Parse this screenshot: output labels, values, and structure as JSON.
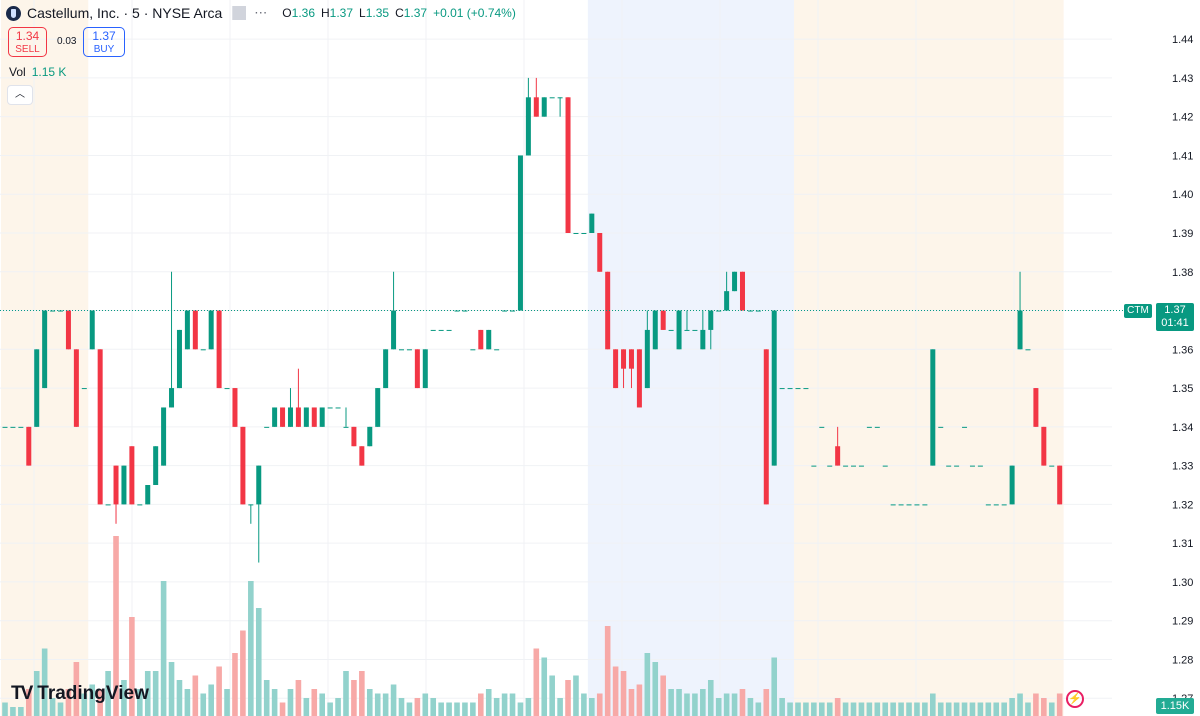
{
  "header": {
    "symbol": "Castellum, Inc. · 5 · NYSE Arca",
    "ohlc": {
      "o_label": "O",
      "o": "1.36",
      "h_label": "H",
      "h": "1.37",
      "l_label": "L",
      "l": "1.35",
      "c_label": "C",
      "c": "1.37",
      "change": "+0.01 (+0.74%)"
    }
  },
  "trade": {
    "sell_price": "1.34",
    "sell_label": "SELL",
    "spread": "0.03",
    "buy_price": "1.37",
    "buy_label": "BUY"
  },
  "volume": {
    "label": "Vol",
    "value": "1.15 K"
  },
  "price_tag": {
    "label": "CTM",
    "price": "1.37",
    "countdown": "01:41"
  },
  "volume_tag": "1.15K",
  "brand": {
    "logo": "TV",
    "name": "TradingView"
  },
  "colors": {
    "up": "#089981",
    "down": "#f23645",
    "up_volume": "#92d2cc",
    "down_volume": "#f7a9a7",
    "premarket": "#fdf5ea",
    "postmarket": "#eef3fd"
  },
  "chart_data": {
    "type": "candlestick",
    "y_axis": {
      "ticks": [
        "1.44",
        "1.43",
        "1.42",
        "1.41",
        "1.40",
        "1.39",
        "1.38",
        "1.37",
        "1.36",
        "1.35",
        "1.34",
        "1.33",
        "1.32",
        "1.31",
        "1.30",
        "1.29",
        "1.28",
        "1.27"
      ],
      "ylim": [
        1.268,
        1.447
      ]
    },
    "current_price": 1.37,
    "sessions": [
      {
        "type": "extended",
        "from": 0,
        "to": 11
      },
      {
        "type": "regular",
        "from": 11,
        "to": 74
      },
      {
        "type": "postmarket",
        "from": 74,
        "to": 100
      },
      {
        "type": "extended",
        "from": 100,
        "to": 134
      }
    ],
    "candles": [
      [
        1.34,
        1.34,
        1.34,
        1.34,
        3
      ],
      [
        1.34,
        1.34,
        1.34,
        1.34,
        2
      ],
      [
        1.34,
        1.34,
        1.34,
        1.34,
        2
      ],
      [
        1.34,
        1.34,
        1.33,
        1.33,
        6
      ],
      [
        1.34,
        1.36,
        1.34,
        1.36,
        10
      ],
      [
        1.35,
        1.37,
        1.35,
        1.37,
        15
      ],
      [
        1.37,
        1.37,
        1.37,
        1.37,
        4
      ],
      [
        1.37,
        1.37,
        1.37,
        1.37,
        3
      ],
      [
        1.37,
        1.37,
        1.36,
        1.36,
        6
      ],
      [
        1.36,
        1.36,
        1.34,
        1.34,
        12
      ],
      [
        1.35,
        1.35,
        1.35,
        1.35,
        5
      ],
      [
        1.36,
        1.37,
        1.36,
        1.37,
        7
      ],
      [
        1.36,
        1.36,
        1.32,
        1.32,
        6
      ],
      [
        1.32,
        1.32,
        1.32,
        1.32,
        10
      ],
      [
        1.33,
        1.33,
        1.315,
        1.32,
        40
      ],
      [
        1.32,
        1.33,
        1.32,
        1.33,
        8
      ],
      [
        1.335,
        1.335,
        1.32,
        1.32,
        22
      ],
      [
        1.32,
        1.32,
        1.32,
        1.32,
        6
      ],
      [
        1.32,
        1.325,
        1.32,
        1.325,
        10
      ],
      [
        1.325,
        1.335,
        1.325,
        1.335,
        10
      ],
      [
        1.33,
        1.345,
        1.33,
        1.345,
        30
      ],
      [
        1.345,
        1.38,
        1.345,
        1.35,
        12
      ],
      [
        1.35,
        1.365,
        1.35,
        1.365,
        8
      ],
      [
        1.36,
        1.37,
        1.36,
        1.37,
        6
      ],
      [
        1.37,
        1.37,
        1.36,
        1.36,
        9
      ],
      [
        1.36,
        1.36,
        1.36,
        1.36,
        5
      ],
      [
        1.36,
        1.37,
        1.36,
        1.37,
        7
      ],
      [
        1.37,
        1.37,
        1.35,
        1.35,
        11
      ],
      [
        1.35,
        1.35,
        1.35,
        1.35,
        6
      ],
      [
        1.35,
        1.35,
        1.34,
        1.34,
        14
      ],
      [
        1.34,
        1.34,
        1.32,
        1.32,
        19
      ],
      [
        1.32,
        1.32,
        1.315,
        1.32,
        30
      ],
      [
        1.32,
        1.33,
        1.305,
        1.33,
        24
      ],
      [
        1.34,
        1.34,
        1.34,
        1.34,
        8
      ],
      [
        1.34,
        1.345,
        1.34,
        1.345,
        6
      ],
      [
        1.345,
        1.345,
        1.34,
        1.34,
        3
      ],
      [
        1.34,
        1.35,
        1.34,
        1.345,
        6
      ],
      [
        1.345,
        1.355,
        1.34,
        1.34,
        8
      ],
      [
        1.34,
        1.345,
        1.34,
        1.345,
        4
      ],
      [
        1.345,
        1.345,
        1.34,
        1.34,
        6
      ],
      [
        1.34,
        1.345,
        1.34,
        1.345,
        5
      ],
      [
        1.345,
        1.345,
        1.345,
        1.345,
        3
      ],
      [
        1.345,
        1.345,
        1.345,
        1.345,
        4
      ],
      [
        1.34,
        1.345,
        1.34,
        1.34,
        10
      ],
      [
        1.34,
        1.34,
        1.335,
        1.335,
        8
      ],
      [
        1.335,
        1.335,
        1.33,
        1.33,
        10
      ],
      [
        1.335,
        1.34,
        1.335,
        1.34,
        6
      ],
      [
        1.34,
        1.35,
        1.34,
        1.35,
        5
      ],
      [
        1.35,
        1.36,
        1.35,
        1.36,
        5
      ],
      [
        1.36,
        1.38,
        1.36,
        1.37,
        7
      ],
      [
        1.36,
        1.36,
        1.36,
        1.36,
        4
      ],
      [
        1.36,
        1.36,
        1.36,
        1.36,
        3
      ],
      [
        1.36,
        1.36,
        1.35,
        1.35,
        4
      ],
      [
        1.35,
        1.36,
        1.35,
        1.36,
        5
      ],
      [
        1.365,
        1.365,
        1.365,
        1.365,
        4
      ],
      [
        1.365,
        1.365,
        1.365,
        1.365,
        3
      ],
      [
        1.365,
        1.365,
        1.365,
        1.365,
        3
      ],
      [
        1.37,
        1.37,
        1.37,
        1.37,
        3
      ],
      [
        1.37,
        1.37,
        1.37,
        1.37,
        3
      ],
      [
        1.36,
        1.36,
        1.36,
        1.36,
        3
      ],
      [
        1.365,
        1.365,
        1.36,
        1.36,
        5
      ],
      [
        1.36,
        1.365,
        1.36,
        1.365,
        6
      ],
      [
        1.36,
        1.36,
        1.36,
        1.36,
        4
      ],
      [
        1.37,
        1.37,
        1.37,
        1.37,
        5
      ],
      [
        1.37,
        1.37,
        1.37,
        1.37,
        5
      ],
      [
        1.37,
        1.41,
        1.37,
        1.41,
        3
      ],
      [
        1.41,
        1.43,
        1.41,
        1.425,
        4
      ],
      [
        1.425,
        1.43,
        1.42,
        1.42,
        15
      ],
      [
        1.42,
        1.425,
        1.42,
        1.425,
        13
      ],
      [
        1.425,
        1.425,
        1.425,
        1.425,
        9
      ],
      [
        1.425,
        1.425,
        1.42,
        1.425,
        4
      ],
      [
        1.425,
        1.425,
        1.39,
        1.39,
        8
      ],
      [
        1.39,
        1.39,
        1.39,
        1.39,
        9
      ],
      [
        1.39,
        1.39,
        1.39,
        1.39,
        5
      ],
      [
        1.39,
        1.395,
        1.39,
        1.395,
        4
      ],
      [
        1.39,
        1.39,
        1.38,
        1.38,
        5
      ],
      [
        1.38,
        1.38,
        1.36,
        1.36,
        20
      ],
      [
        1.36,
        1.36,
        1.35,
        1.35,
        11
      ],
      [
        1.36,
        1.36,
        1.35,
        1.355,
        10
      ],
      [
        1.36,
        1.36,
        1.35,
        1.355,
        6
      ],
      [
        1.36,
        1.36,
        1.345,
        1.345,
        7
      ],
      [
        1.35,
        1.37,
        1.35,
        1.365,
        14
      ],
      [
        1.36,
        1.37,
        1.36,
        1.37,
        12
      ],
      [
        1.37,
        1.37,
        1.365,
        1.365,
        9
      ],
      [
        1.365,
        1.365,
        1.365,
        1.365,
        6
      ],
      [
        1.36,
        1.37,
        1.36,
        1.37,
        6
      ],
      [
        1.365,
        1.37,
        1.365,
        1.365,
        5
      ],
      [
        1.365,
        1.365,
        1.365,
        1.365,
        5
      ],
      [
        1.36,
        1.37,
        1.36,
        1.365,
        6
      ],
      [
        1.365,
        1.37,
        1.36,
        1.37,
        8
      ],
      [
        1.37,
        1.37,
        1.37,
        1.37,
        4
      ],
      [
        1.37,
        1.38,
        1.37,
        1.375,
        5
      ],
      [
        1.375,
        1.38,
        1.375,
        1.38,
        5
      ],
      [
        1.38,
        1.38,
        1.37,
        1.37,
        6
      ],
      [
        1.37,
        1.37,
        1.37,
        1.37,
        4
      ],
      [
        1.37,
        1.37,
        1.37,
        1.37,
        3
      ],
      [
        1.36,
        1.36,
        1.32,
        1.32,
        6
      ],
      [
        1.33,
        1.37,
        1.33,
        1.37,
        13
      ],
      [
        1.35,
        1.35,
        1.35,
        1.35,
        4
      ],
      [
        1.35,
        1.35,
        1.35,
        1.35,
        3
      ],
      [
        1.35,
        1.35,
        1.35,
        1.35,
        3
      ],
      [
        1.35,
        1.35,
        1.35,
        1.35,
        3
      ],
      [
        1.33,
        1.33,
        1.33,
        1.33,
        3
      ],
      [
        1.34,
        1.34,
        1.34,
        1.34,
        3
      ],
      [
        1.33,
        1.33,
        1.33,
        1.33,
        3
      ],
      [
        1.335,
        1.34,
        1.33,
        1.33,
        4
      ],
      [
        1.33,
        1.33,
        1.33,
        1.33,
        3
      ],
      [
        1.33,
        1.33,
        1.33,
        1.33,
        3
      ],
      [
        1.33,
        1.33,
        1.33,
        1.33,
        3
      ],
      [
        1.34,
        1.34,
        1.34,
        1.34,
        3
      ],
      [
        1.34,
        1.34,
        1.34,
        1.34,
        3
      ],
      [
        1.33,
        1.33,
        1.33,
        1.33,
        3
      ],
      [
        1.32,
        1.32,
        1.32,
        1.32,
        3
      ],
      [
        1.32,
        1.32,
        1.32,
        1.32,
        3
      ],
      [
        1.32,
        1.32,
        1.32,
        1.32,
        3
      ],
      [
        1.32,
        1.32,
        1.32,
        1.32,
        3
      ],
      [
        1.32,
        1.32,
        1.32,
        1.32,
        3
      ],
      [
        1.33,
        1.36,
        1.33,
        1.36,
        5
      ],
      [
        1.34,
        1.34,
        1.34,
        1.34,
        3
      ],
      [
        1.33,
        1.33,
        1.33,
        1.33,
        3
      ],
      [
        1.33,
        1.33,
        1.33,
        1.33,
        3
      ],
      [
        1.34,
        1.34,
        1.34,
        1.34,
        3
      ],
      [
        1.33,
        1.33,
        1.33,
        1.33,
        3
      ],
      [
        1.33,
        1.33,
        1.33,
        1.33,
        3
      ],
      [
        1.32,
        1.32,
        1.32,
        1.32,
        3
      ],
      [
        1.32,
        1.32,
        1.32,
        1.32,
        3
      ],
      [
        1.32,
        1.32,
        1.32,
        1.32,
        3
      ],
      [
        1.32,
        1.33,
        1.32,
        1.33,
        4
      ],
      [
        1.36,
        1.38,
        1.36,
        1.37,
        5
      ],
      [
        1.36,
        1.36,
        1.36,
        1.36,
        3
      ],
      [
        1.35,
        1.35,
        1.34,
        1.34,
        5
      ],
      [
        1.34,
        1.34,
        1.33,
        1.33,
        4
      ],
      [
        1.33,
        1.33,
        1.33,
        1.33,
        3
      ],
      [
        1.33,
        1.33,
        1.32,
        1.32,
        5
      ]
    ]
  }
}
